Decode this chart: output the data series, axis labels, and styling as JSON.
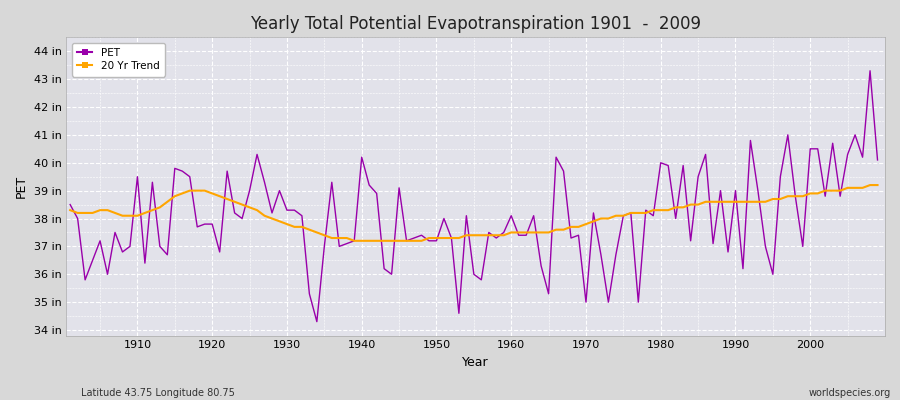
{
  "title": "Yearly Total Potential Evapotranspiration 1901  -  2009",
  "xlabel": "Year",
  "ylabel": "PET",
  "subtitle_left": "Latitude 43.75 Longitude 80.75",
  "subtitle_right": "worldspecies.org",
  "ylim": [
    33.8,
    44.5
  ],
  "xlim": [
    1900.5,
    2010
  ],
  "yticks": [
    34,
    35,
    36,
    37,
    38,
    39,
    40,
    41,
    42,
    43,
    44
  ],
  "ytick_labels": [
    "34 in",
    "35 in",
    "36 in",
    "37 in",
    "38 in",
    "39 in",
    "40 in",
    "41 in",
    "42 in",
    "43 in",
    "44 in"
  ],
  "xticks": [
    1910,
    1920,
    1930,
    1940,
    1950,
    1960,
    1970,
    1980,
    1990,
    2000
  ],
  "pet_color": "#9900AA",
  "trend_color": "#FFA500",
  "bg_color": "#DCDCDC",
  "plot_bg_color": "#E0E0E8",
  "years": [
    1901,
    1902,
    1903,
    1904,
    1905,
    1906,
    1907,
    1908,
    1909,
    1910,
    1911,
    1912,
    1913,
    1914,
    1915,
    1916,
    1917,
    1918,
    1919,
    1920,
    1921,
    1922,
    1923,
    1924,
    1925,
    1926,
    1927,
    1928,
    1929,
    1930,
    1931,
    1932,
    1933,
    1934,
    1935,
    1936,
    1937,
    1938,
    1939,
    1940,
    1941,
    1942,
    1943,
    1944,
    1945,
    1946,
    1947,
    1948,
    1949,
    1950,
    1951,
    1952,
    1953,
    1954,
    1955,
    1956,
    1957,
    1958,
    1959,
    1960,
    1961,
    1962,
    1963,
    1964,
    1965,
    1966,
    1967,
    1968,
    1969,
    1970,
    1971,
    1972,
    1973,
    1974,
    1975,
    1976,
    1977,
    1978,
    1979,
    1980,
    1981,
    1982,
    1983,
    1984,
    1985,
    1986,
    1987,
    1988,
    1989,
    1990,
    1991,
    1992,
    1993,
    1994,
    1995,
    1996,
    1997,
    1998,
    1999,
    2000,
    2001,
    2002,
    2003,
    2004,
    2005,
    2006,
    2007,
    2008,
    2009
  ],
  "pet_values": [
    38.5,
    38.0,
    35.8,
    36.5,
    37.2,
    36.0,
    37.5,
    36.8,
    37.0,
    39.5,
    36.4,
    39.3,
    37.0,
    36.7,
    39.8,
    39.7,
    39.5,
    37.7,
    37.8,
    37.8,
    36.8,
    39.7,
    38.2,
    38.0,
    39.0,
    40.3,
    39.3,
    38.2,
    39.0,
    38.3,
    38.3,
    38.1,
    35.3,
    34.3,
    37.0,
    39.3,
    37.0,
    37.1,
    37.2,
    40.2,
    39.2,
    38.9,
    36.2,
    36.0,
    39.1,
    37.2,
    37.3,
    37.4,
    37.2,
    37.2,
    38.0,
    37.3,
    34.6,
    38.1,
    36.0,
    35.8,
    37.5,
    37.3,
    37.5,
    38.1,
    37.4,
    37.4,
    38.1,
    36.3,
    35.3,
    40.2,
    39.7,
    37.3,
    37.4,
    35.0,
    38.2,
    36.7,
    35.0,
    36.7,
    38.1,
    38.2,
    35.0,
    38.3,
    38.1,
    40.0,
    39.9,
    38.0,
    39.9,
    37.2,
    39.5,
    40.3,
    37.1,
    39.0,
    36.8,
    39.0,
    36.2,
    40.8,
    39.0,
    37.0,
    36.0,
    39.5,
    41.0,
    38.8,
    37.0,
    40.5,
    40.5,
    38.8,
    40.7,
    38.8,
    40.3,
    41.0,
    40.2,
    43.3,
    40.1
  ],
  "trend_values": [
    38.3,
    38.2,
    38.2,
    38.2,
    38.3,
    38.3,
    38.2,
    38.1,
    38.1,
    38.1,
    38.2,
    38.3,
    38.4,
    38.6,
    38.8,
    38.9,
    39.0,
    39.0,
    39.0,
    38.9,
    38.8,
    38.7,
    38.6,
    38.5,
    38.4,
    38.3,
    38.1,
    38.0,
    37.9,
    37.8,
    37.7,
    37.7,
    37.6,
    37.5,
    37.4,
    37.3,
    37.3,
    37.3,
    37.2,
    37.2,
    37.2,
    37.2,
    37.2,
    37.2,
    37.2,
    37.2,
    37.2,
    37.2,
    37.3,
    37.3,
    37.3,
    37.3,
    37.3,
    37.4,
    37.4,
    37.4,
    37.4,
    37.4,
    37.4,
    37.5,
    37.5,
    37.5,
    37.5,
    37.5,
    37.5,
    37.6,
    37.6,
    37.7,
    37.7,
    37.8,
    37.9,
    38.0,
    38.0,
    38.1,
    38.1,
    38.2,
    38.2,
    38.2,
    38.3,
    38.3,
    38.3,
    38.4,
    38.4,
    38.5,
    38.5,
    38.6,
    38.6,
    38.6,
    38.6,
    38.6,
    38.6,
    38.6,
    38.6,
    38.6,
    38.7,
    38.7,
    38.8,
    38.8,
    38.8,
    38.9,
    38.9,
    39.0,
    39.0,
    39.0,
    39.1,
    39.1,
    39.1,
    39.2,
    39.2
  ]
}
